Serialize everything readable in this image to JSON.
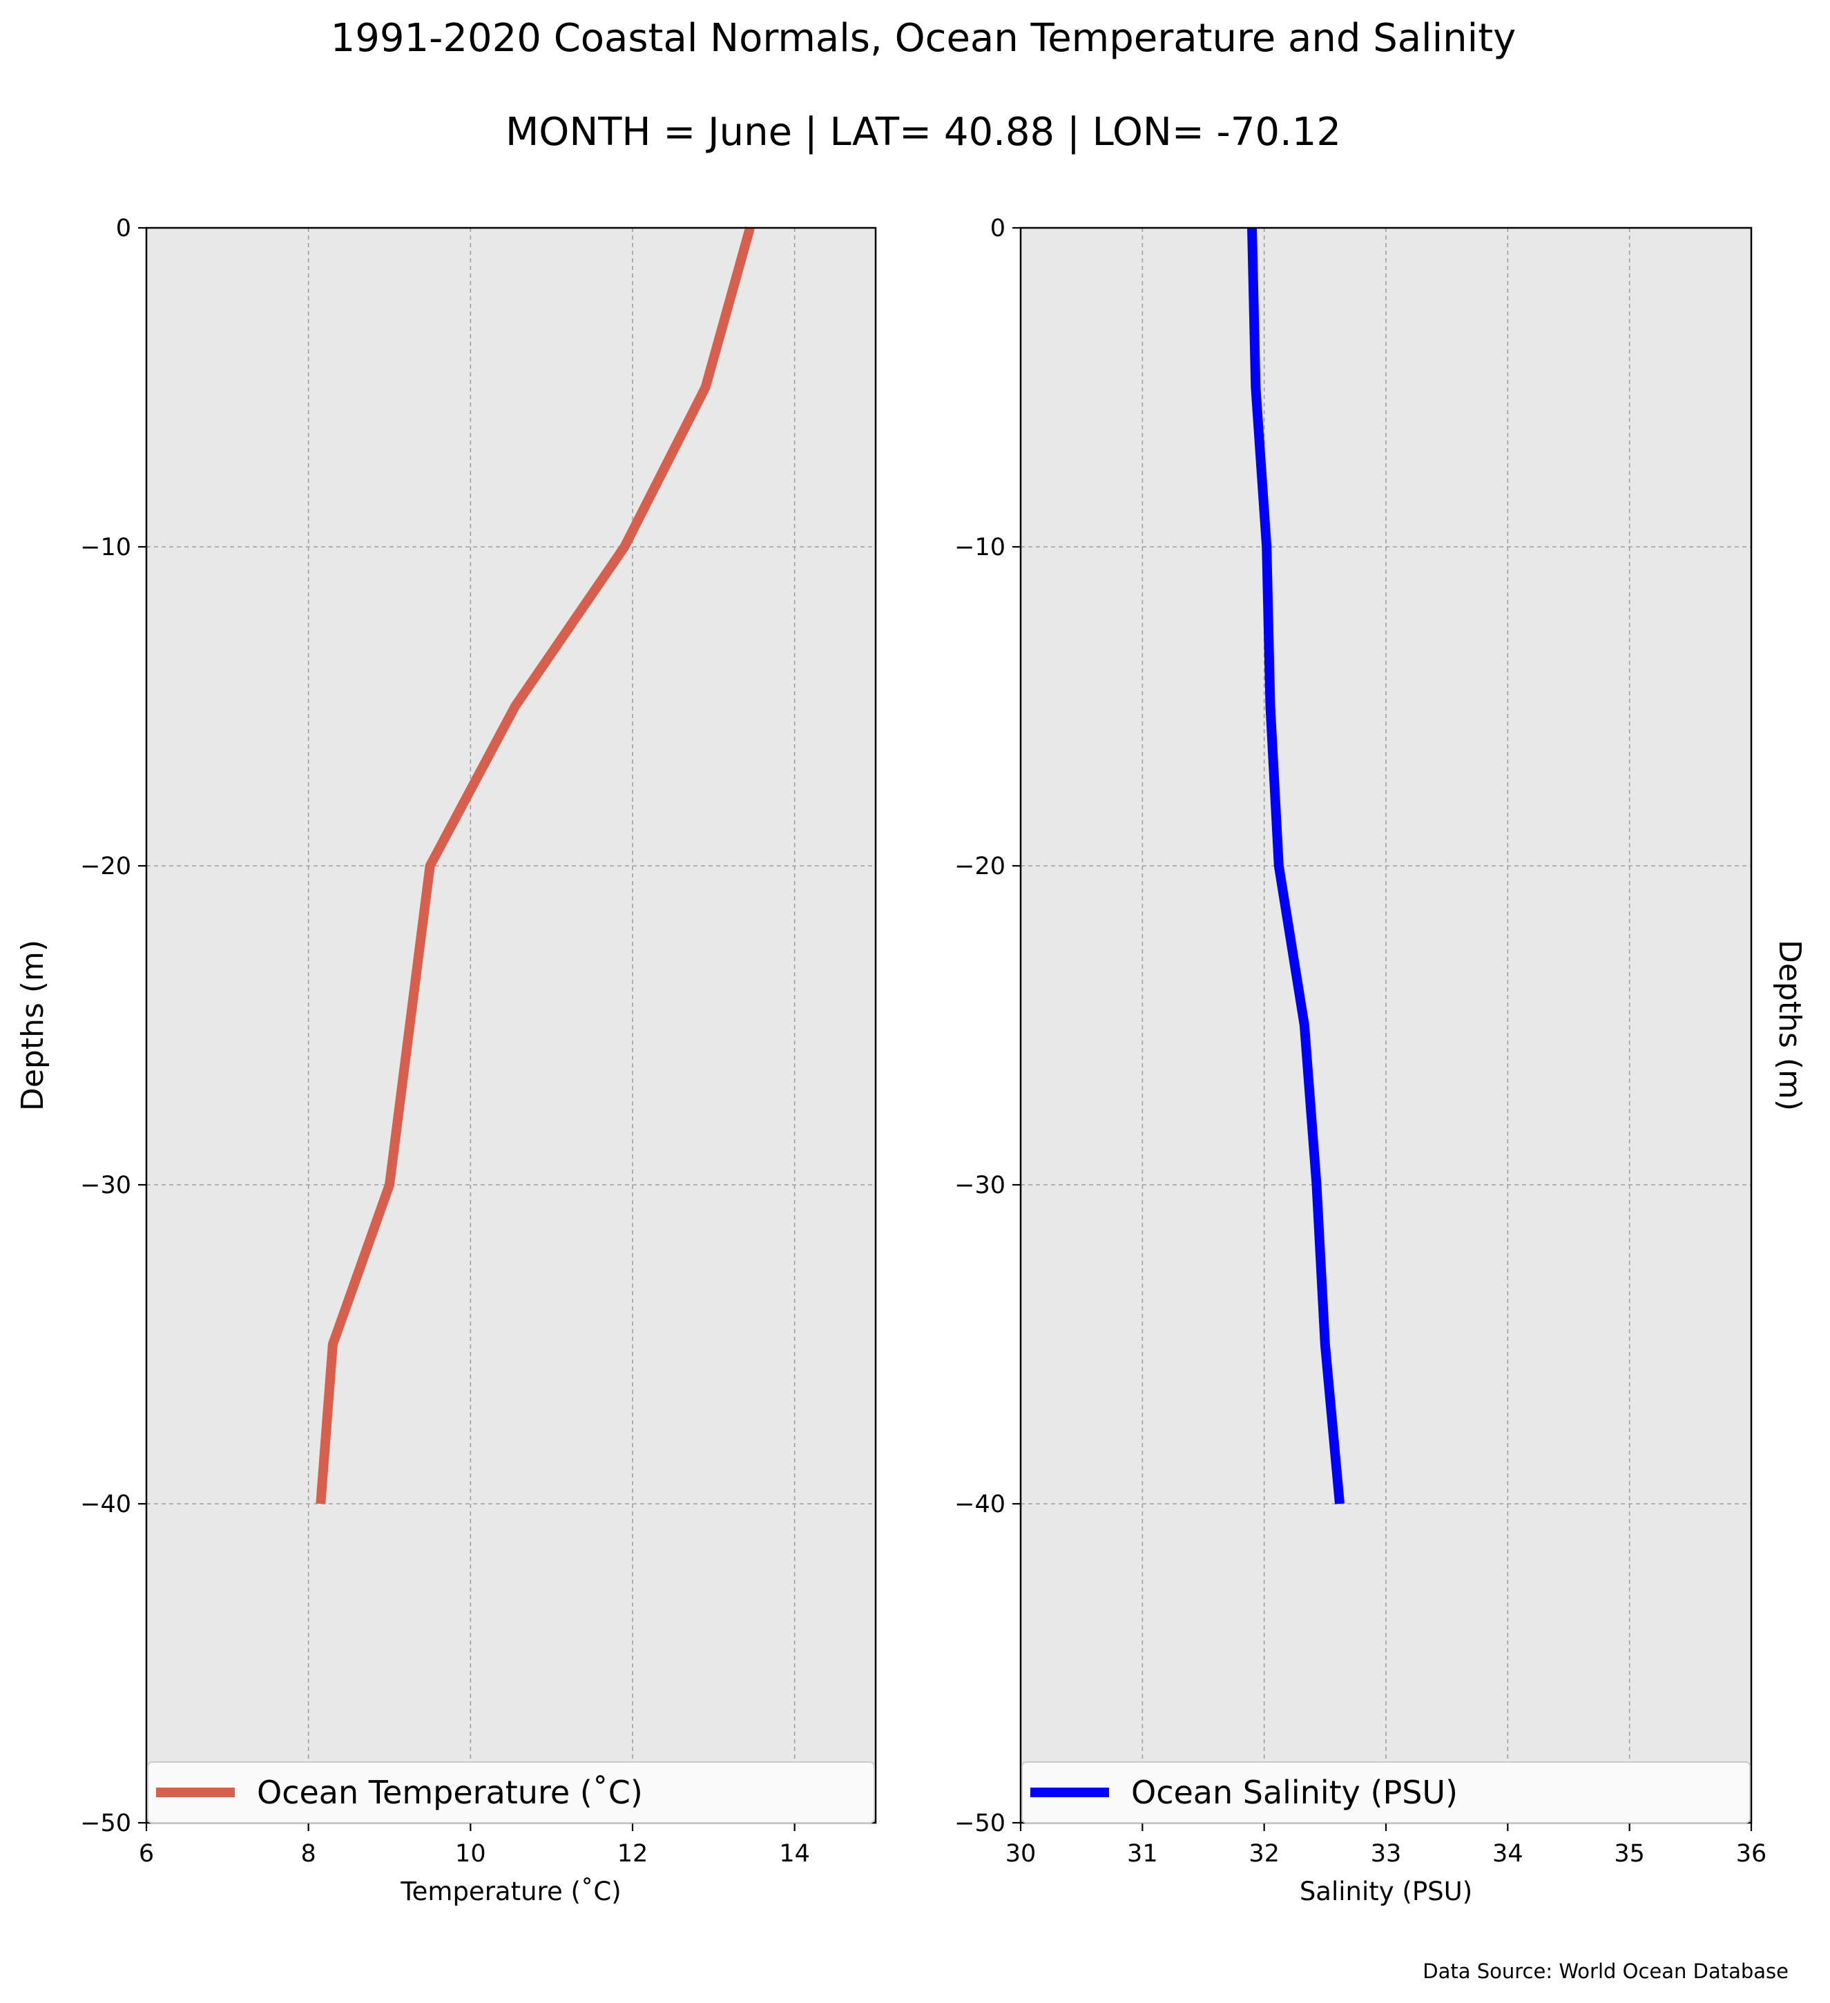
{
  "figure": {
    "title": "1991-2020 Coastal Normals, Ocean Temperature and Salinity",
    "subtitle": "MONTH = June | LAT= 40.88 | LON= -70.12",
    "source": "Data Source: World Ocean Database"
  },
  "chart_data": [
    {
      "type": "line",
      "xlabel": "Temperature (˚C)",
      "ylabel": "Depths (m)",
      "xlim": [
        6,
        15
      ],
      "ylim": [
        -50,
        0
      ],
      "xticks": [
        6,
        8,
        10,
        12,
        14
      ],
      "xticklabels": [
        "6",
        "8",
        "10",
        "12",
        "14"
      ],
      "yticks": [
        0,
        -10,
        -20,
        -30,
        -40,
        -50
      ],
      "yticklabels": [
        "0",
        "−10",
        "−20",
        "−30",
        "−40",
        "−50"
      ],
      "grid": true,
      "legend_position": "lower-center",
      "background_color": "#e8e8e8",
      "series": [
        {
          "name": "Ocean Temperature (˚C)",
          "color": "#d6604d",
          "x": [
            13.45,
            12.9,
            11.9,
            10.55,
            9.5,
            9.0,
            8.3,
            8.15
          ],
          "y": [
            0,
            -5,
            -10,
            -15,
            -20,
            -30,
            -35,
            -40
          ]
        }
      ]
    },
    {
      "type": "line",
      "xlabel": "Salinity (PSU)",
      "ylabel": "Depths (m)",
      "xlim": [
        30,
        36
      ],
      "ylim": [
        -50,
        0
      ],
      "xticks": [
        30,
        31,
        32,
        33,
        34,
        35,
        36
      ],
      "xticklabels": [
        "30",
        "31",
        "32",
        "33",
        "34",
        "35",
        "36"
      ],
      "yticks": [
        0,
        -10,
        -20,
        -30,
        -40,
        -50
      ],
      "yticklabels": [
        "0",
        "−10",
        "−20",
        "−30",
        "−40",
        "−50"
      ],
      "grid": true,
      "legend_position": "lower-center",
      "ylabel_position": "right",
      "background_color": "#e8e8e8",
      "series": [
        {
          "name": "Ocean Salinity (PSU)",
          "color": "#0000ff",
          "x": [
            31.9,
            31.93,
            32.02,
            32.05,
            32.12,
            32.33,
            32.43,
            32.5,
            32.62
          ],
          "y": [
            0,
            -5,
            -10,
            -15,
            -20,
            -25,
            -30,
            -35,
            -40
          ]
        }
      ]
    }
  ]
}
